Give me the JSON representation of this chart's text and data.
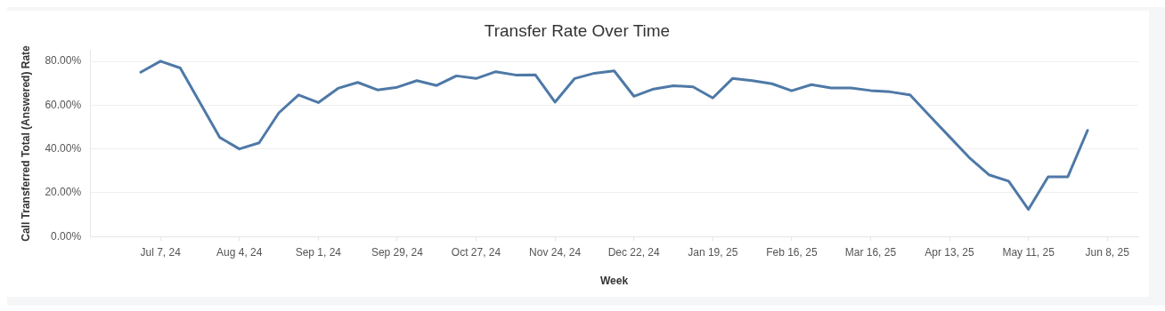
{
  "chart_data": {
    "type": "line",
    "title": "Transfer Rate Over Time",
    "xlabel": "Week",
    "ylabel": "Call Transferred Total (Answered) Rate",
    "x": [
      "2024-06-30",
      "2024-07-07",
      "2024-07-14",
      "2024-07-21",
      "2024-07-28",
      "2024-08-04",
      "2024-08-11",
      "2024-08-18",
      "2024-08-25",
      "2024-09-01",
      "2024-09-08",
      "2024-09-15",
      "2024-09-22",
      "2024-09-29",
      "2024-10-06",
      "2024-10-13",
      "2024-10-20",
      "2024-10-27",
      "2024-11-03",
      "2024-11-10",
      "2024-11-17",
      "2024-11-24",
      "2024-12-01",
      "2024-12-08",
      "2024-12-15",
      "2024-12-22",
      "2024-12-29",
      "2025-01-05",
      "2025-01-12",
      "2025-01-19",
      "2025-01-26",
      "2025-02-02",
      "2025-02-09",
      "2025-02-16",
      "2025-02-23",
      "2025-03-02",
      "2025-03-09",
      "2025-03-16",
      "2025-03-23",
      "2025-03-30",
      "2025-04-06",
      "2025-04-13",
      "2025-04-20",
      "2025-04-27",
      "2025-05-04",
      "2025-05-11",
      "2025-05-18",
      "2025-05-25",
      "2025-06-01"
    ],
    "series": [
      {
        "color": "#4e79a7",
        "values": [
          75.1,
          80.1,
          77.0,
          61.2,
          45.3,
          40.0,
          42.8,
          56.5,
          64.7,
          61.2,
          67.7,
          70.4,
          67.0,
          68.2,
          71.2,
          69.0,
          73.4,
          72.2,
          75.3,
          73.8,
          73.9,
          61.4,
          72.2,
          74.6,
          75.7,
          64.1,
          67.4,
          68.9,
          68.4,
          63.3,
          72.2,
          71.2,
          69.8,
          66.6,
          69.4,
          67.9,
          67.9,
          66.7,
          66.1,
          64.7,
          55.1,
          45.6,
          36.1,
          28.2,
          25.3,
          12.4,
          27.3,
          27.3,
          48.5
        ]
      }
    ],
    "xlim": [
      "2024-06-12",
      "2025-06-19"
    ],
    "xticks": [
      {
        "value": "2024-07-07",
        "label": "Jul 7, 24"
      },
      {
        "value": "2024-08-04",
        "label": "Aug 4, 24"
      },
      {
        "value": "2024-09-01",
        "label": "Sep 1, 24"
      },
      {
        "value": "2024-09-29",
        "label": "Sep 29, 24"
      },
      {
        "value": "2024-10-27",
        "label": "Oct 27, 24"
      },
      {
        "value": "2024-11-24",
        "label": "Nov 24, 24"
      },
      {
        "value": "2024-12-22",
        "label": "Dec 22, 24"
      },
      {
        "value": "2025-01-19",
        "label": "Jan 19, 25"
      },
      {
        "value": "2025-02-16",
        "label": "Feb 16, 25"
      },
      {
        "value": "2025-03-16",
        "label": "Mar 16, 25"
      },
      {
        "value": "2025-04-13",
        "label": "Apr 13, 25"
      },
      {
        "value": "2025-05-11",
        "label": "May 11, 25"
      },
      {
        "value": "2025-06-08",
        "label": "Jun 8, 25"
      }
    ],
    "ylim": [
      0,
      85
    ],
    "yticks": [
      {
        "value": 0,
        "label": "0.00%"
      },
      {
        "value": 20,
        "label": "20.00%"
      },
      {
        "value": 40,
        "label": "40.00%"
      },
      {
        "value": 60,
        "label": "60.00%"
      },
      {
        "value": 80,
        "label": "80.00%"
      }
    ],
    "grid": "y",
    "legend": false,
    "marker": "none",
    "line_style": "solid"
  }
}
